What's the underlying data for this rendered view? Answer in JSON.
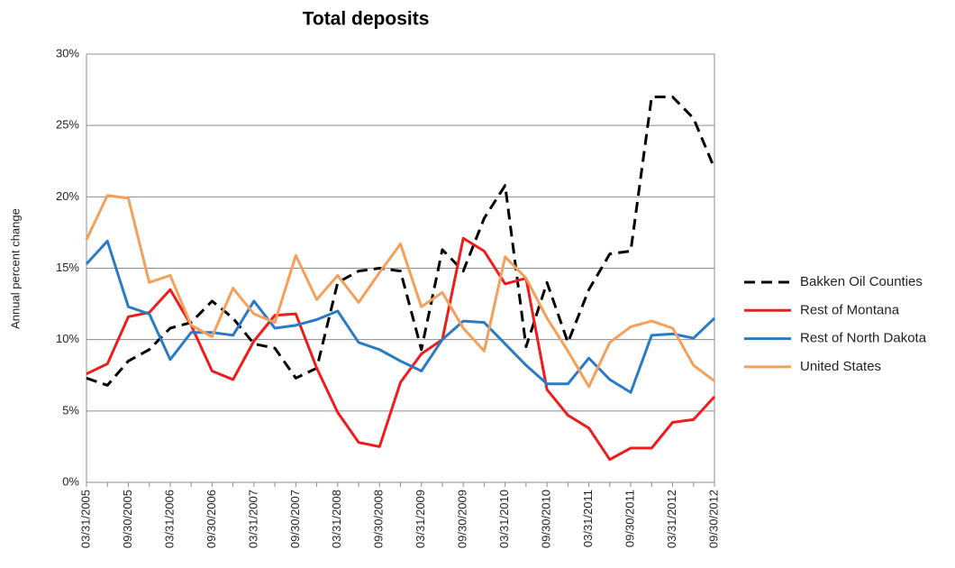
{
  "chart_data": {
    "type": "line",
    "title": "Total deposits",
    "y_label": "Annual percent change",
    "categories": [
      "03/31/2005",
      null,
      "09/30/2005",
      null,
      "03/31/2006",
      null,
      "09/30/2006",
      null,
      "03/31/2007",
      null,
      "09/30/2007",
      null,
      "03/31/2008",
      null,
      "09/30/2008",
      null,
      "03/31/2009",
      null,
      "09/30/2009",
      null,
      "03/31/2010",
      null,
      "09/30/2010",
      null,
      "03/31/2011",
      null,
      "09/30/2011",
      null,
      "03/31/2012",
      null,
      "09/30/2012"
    ],
    "series": [
      {
        "name": "Bakken Oil Counties",
        "color": "#000000",
        "dashed": true,
        "values": [
          7.3,
          6.8,
          8.5,
          9.3,
          10.8,
          11.2,
          12.7,
          11.5,
          9.7,
          9.4,
          7.3,
          8.0,
          14.0,
          14.8,
          15.0,
          14.8,
          9.3,
          16.3,
          14.8,
          18.5,
          20.8,
          9.5,
          14.0,
          9.8,
          13.5,
          16.0,
          16.2,
          27.0,
          27.0,
          25.5,
          22.0
        ]
      },
      {
        "name": "Rest of Montana",
        "color": "#ee1c1c",
        "values": [
          7.6,
          8.3,
          11.6,
          11.9,
          13.5,
          11.0,
          7.8,
          7.2,
          9.9,
          11.7,
          11.8,
          8.0,
          4.9,
          2.8,
          2.5,
          7.0,
          9.0,
          10.0,
          17.1,
          16.2,
          13.9,
          14.3,
          6.5,
          4.7,
          3.8,
          1.6,
          2.4,
          2.4,
          4.2,
          4.4,
          6.0
        ]
      },
      {
        "name": "Rest of North Dakota",
        "color": "#2a7bc4",
        "values": [
          15.3,
          16.9,
          12.3,
          11.8,
          8.6,
          10.5,
          10.5,
          10.3,
          12.7,
          10.8,
          11.0,
          11.4,
          12.0,
          9.8,
          9.3,
          8.5,
          7.8,
          10.0,
          11.3,
          11.2,
          9.7,
          8.2,
          6.9,
          6.9,
          8.7,
          7.2,
          6.3,
          10.3,
          10.4,
          10.1,
          11.5
        ]
      },
      {
        "name": "United States",
        "color": "#f4a05a",
        "values": [
          17.0,
          20.1,
          19.9,
          14.0,
          14.5,
          11.0,
          10.2,
          13.6,
          11.8,
          11.2,
          15.9,
          12.8,
          14.5,
          12.6,
          14.7,
          16.7,
          12.3,
          13.3,
          10.8,
          9.2,
          15.8,
          14.3,
          11.5,
          9.2,
          6.7,
          9.8,
          10.9,
          11.3,
          10.8,
          8.2,
          7.1
        ]
      }
    ],
    "ylim": [
      0,
      30
    ],
    "yticks": [
      {
        "value": 0,
        "label": "0%"
      },
      {
        "value": 5,
        "label": "5%"
      },
      {
        "value": 10,
        "label": "10%"
      },
      {
        "value": 15,
        "label": "15%"
      },
      {
        "value": 20,
        "label": "20%"
      },
      {
        "value": 25,
        "label": "25%"
      },
      {
        "value": 30,
        "label": "30%"
      }
    ],
    "grid": true,
    "legend": "right"
  }
}
